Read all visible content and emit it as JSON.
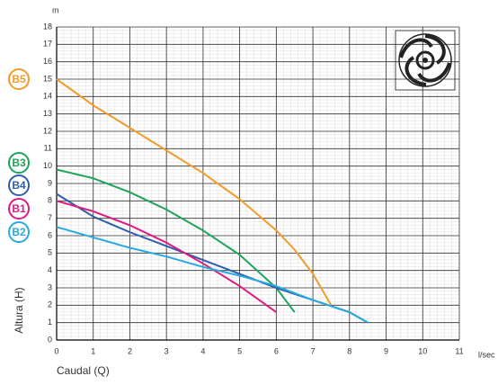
{
  "chart_data": {
    "type": "line",
    "y_unit": "m",
    "x_unit": "l/sec",
    "ylabel": "Altura (H)",
    "xlabel": "Caudal (Q)",
    "xlim": [
      0,
      11
    ],
    "ylim": [
      0,
      18
    ],
    "xticks": [
      0,
      1,
      2,
      3,
      4,
      5,
      6,
      7,
      8,
      9,
      10,
      11
    ],
    "yticks": [
      0,
      1,
      2,
      3,
      4,
      5,
      6,
      7,
      8,
      9,
      10,
      11,
      12,
      13,
      14,
      15,
      16,
      17,
      18
    ],
    "grid": true,
    "series": [
      {
        "name": "B5",
        "color": "#f39a2a",
        "x": [
          0,
          1,
          2,
          3,
          4,
          5,
          6,
          6.5,
          7,
          7.5
        ],
        "values": [
          15,
          13.5,
          12.2,
          10.9,
          9.6,
          8.1,
          6.3,
          5.2,
          3.8,
          2.0
        ]
      },
      {
        "name": "B3",
        "color": "#1fa35a",
        "x": [
          0,
          1,
          2,
          3,
          4,
          5,
          6,
          6.5
        ],
        "values": [
          9.8,
          9.3,
          8.5,
          7.5,
          6.3,
          4.9,
          3.0,
          1.6
        ]
      },
      {
        "name": "B4",
        "color": "#2e5ea8",
        "x": [
          0,
          1,
          2,
          3,
          4,
          5,
          6,
          7,
          8,
          8.5
        ],
        "values": [
          8.4,
          7.1,
          6.2,
          5.4,
          4.6,
          3.8,
          3.0,
          2.3,
          1.6,
          1.0
        ]
      },
      {
        "name": "B1",
        "color": "#e0197f",
        "x": [
          0,
          1,
          2,
          3,
          4,
          5,
          6
        ],
        "values": [
          8.0,
          7.4,
          6.6,
          5.6,
          4.4,
          3.1,
          1.6
        ]
      },
      {
        "name": "B2",
        "color": "#29a9e1",
        "x": [
          0,
          1,
          2,
          3,
          4,
          5,
          6,
          7,
          8,
          8.5
        ],
        "values": [
          6.5,
          5.9,
          5.3,
          4.8,
          4.2,
          3.7,
          3.1,
          2.3,
          1.6,
          1.0
        ]
      }
    ]
  }
}
